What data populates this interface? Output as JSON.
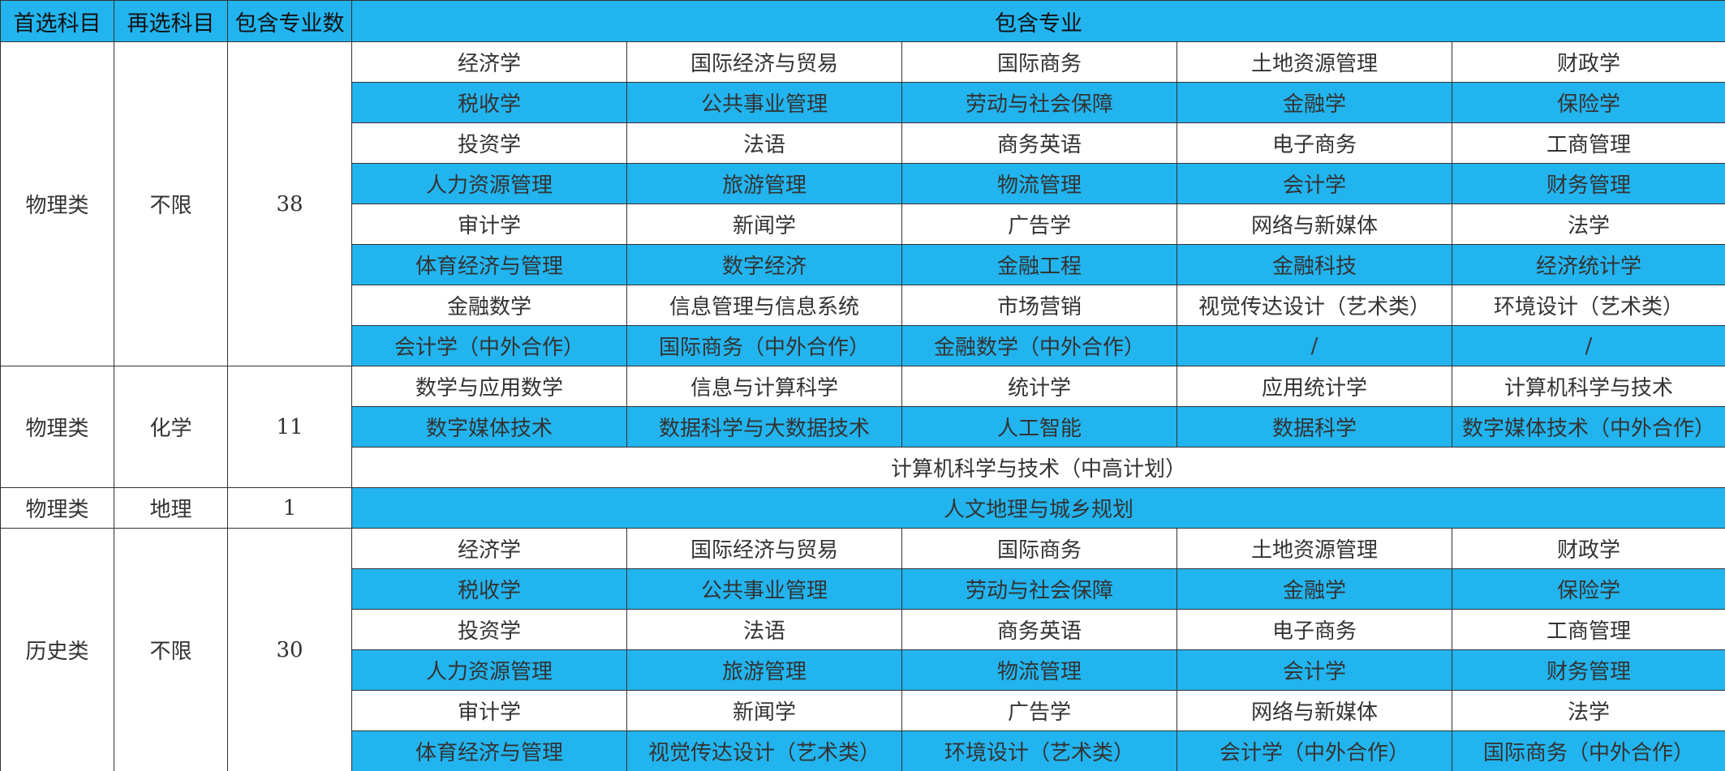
{
  "header": [
    "首选科目",
    "再选科目",
    "包含专业数",
    "包含专业"
  ],
  "groups": [
    {
      "first": "物理类",
      "second": "不限",
      "count": "38",
      "rows": [
        [
          "经济学",
          "国际经济与贸易",
          "国际商务",
          "土地资源管理",
          "财政学"
        ],
        [
          "税收学",
          "公共事业管理",
          "劳动与社会保障",
          "金融学",
          "保险学"
        ],
        [
          "投资学",
          "法语",
          "商务英语",
          "电子商务",
          "工商管理"
        ],
        [
          "人力资源管理",
          "旅游管理",
          "物流管理",
          "会计学",
          "财务管理"
        ],
        [
          "审计学",
          "新闻学",
          "广告学",
          "网络与新媒体",
          "法学"
        ],
        [
          "体育经济与管理",
          "数字经济",
          "金融工程",
          "金融科技",
          "经济统计学"
        ],
        [
          "金融数学",
          "信息管理与信息系统",
          "市场营销",
          "视觉传达设计（艺术类）",
          "环境设计（艺术类）"
        ],
        [
          "会计学（中外合作）",
          "国际商务（中外合作）",
          "金融数学（中外合作）",
          "/",
          "/"
        ]
      ]
    },
    {
      "first": "物理类",
      "second": "化学",
      "count": "11",
      "rows": [
        [
          "数学与应用数学",
          "信息与计算科学",
          "统计学",
          "应用统计学",
          "计算机科学与技术"
        ],
        [
          "数字媒体技术",
          "数据科学与大数据技术",
          "人工智能",
          "数据科学",
          "数字媒体技术（中外合作）"
        ],
        [
          "计算机科学与技术（中高计划）"
        ]
      ]
    },
    {
      "first": "物理类",
      "second": "地理",
      "count": "1",
      "rows": [
        [
          "人文地理与城乡规划"
        ]
      ]
    },
    {
      "first": "历史类",
      "second": "不限",
      "count": "30",
      "rows": [
        [
          "经济学",
          "国际经济与贸易",
          "国际商务",
          "土地资源管理",
          "财政学"
        ],
        [
          "税收学",
          "公共事业管理",
          "劳动与社会保障",
          "金融学",
          "保险学"
        ],
        [
          "投资学",
          "法语",
          "商务英语",
          "电子商务",
          "工商管理"
        ],
        [
          "人力资源管理",
          "旅游管理",
          "物流管理",
          "会计学",
          "财务管理"
        ],
        [
          "审计学",
          "新闻学",
          "广告学",
          "网络与新媒体",
          "法学"
        ],
        [
          "体育经济与管理",
          "视觉传达设计（艺术类）",
          "环境设计（艺术类）",
          "会计学（中外合作）",
          "国际商务（中外合作）"
        ]
      ]
    }
  ]
}
